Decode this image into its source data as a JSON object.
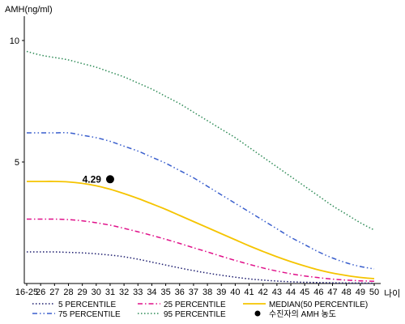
{
  "chart_data": {
    "type": "line",
    "ylabel": "AMH(ng/ml)",
    "xlabel": "나이",
    "ylim": [
      0,
      11
    ],
    "yticks": [
      5,
      10
    ],
    "categories": [
      "16-25",
      "26",
      "27",
      "28",
      "29",
      "30",
      "31",
      "32",
      "33",
      "34",
      "35",
      "36",
      "37",
      "38",
      "39",
      "40",
      "41",
      "42",
      "43",
      "44",
      "45",
      "46",
      "47",
      "48",
      "49",
      "50"
    ],
    "series": [
      {
        "name": "95 PERCENTILE",
        "color": "#2e8b57",
        "dash": "dot",
        "values": [
          9.55,
          9.4,
          9.3,
          9.2,
          9.05,
          8.9,
          8.7,
          8.5,
          8.25,
          8.0,
          7.7,
          7.4,
          7.05,
          6.7,
          6.35,
          6.0,
          5.6,
          5.2,
          4.8,
          4.4,
          4.0,
          3.6,
          3.2,
          2.85,
          2.5,
          2.2
        ]
      },
      {
        "name": "75 PERCENTILE",
        "color": "#3a5fcd",
        "dash": "dashdotdot",
        "values": [
          6.2,
          6.2,
          6.2,
          6.2,
          6.1,
          6.0,
          5.85,
          5.65,
          5.45,
          5.2,
          4.95,
          4.65,
          4.35,
          4.0,
          3.65,
          3.3,
          2.95,
          2.6,
          2.25,
          1.9,
          1.6,
          1.3,
          1.05,
          0.85,
          0.7,
          0.6
        ]
      },
      {
        "name": "MEDIAN(50 PERCENTILE)",
        "color": "#f5c400",
        "dash": "solid",
        "values": [
          4.2,
          4.2,
          4.2,
          4.18,
          4.12,
          4.02,
          3.88,
          3.7,
          3.5,
          3.28,
          3.05,
          2.8,
          2.55,
          2.3,
          2.05,
          1.8,
          1.55,
          1.32,
          1.1,
          0.9,
          0.72,
          0.56,
          0.43,
          0.33,
          0.25,
          0.2
        ]
      },
      {
        "name": "25 PERCENTILE",
        "color": "#e0118a",
        "dash": "dashdot",
        "values": [
          2.65,
          2.65,
          2.65,
          2.63,
          2.58,
          2.5,
          2.4,
          2.27,
          2.13,
          1.98,
          1.82,
          1.65,
          1.47,
          1.3,
          1.12,
          0.95,
          0.79,
          0.64,
          0.51,
          0.4,
          0.31,
          0.24,
          0.18,
          0.14,
          0.11,
          0.09
        ]
      },
      {
        "name": "5 PERCENTILE",
        "color": "#1c1c6e",
        "dash": "dot",
        "values": [
          1.3,
          1.3,
          1.3,
          1.28,
          1.26,
          1.22,
          1.17,
          1.1,
          1.0,
          0.88,
          0.76,
          0.64,
          0.53,
          0.43,
          0.34,
          0.26,
          0.19,
          0.14,
          0.1,
          0.07,
          0.05,
          0.04,
          0.03,
          0.02,
          0.02,
          0.01
        ]
      }
    ],
    "points": [
      {
        "name": "수진자의 AMH 농도",
        "x": "31",
        "y": 4.29,
        "label": "4.29",
        "color": "#000000"
      }
    ],
    "legend": {
      "placement": "bottom",
      "entries": [
        {
          "label": "5 PERCENTILE",
          "color": "#1c1c6e",
          "dash": "dot",
          "kind": "line"
        },
        {
          "label": "25 PERCENTILE",
          "color": "#e0118a",
          "dash": "dashdot",
          "kind": "line"
        },
        {
          "label": "MEDIAN(50 PERCENTILE)",
          "color": "#f5c400",
          "dash": "solid",
          "kind": "line"
        },
        {
          "label": "75 PERCENTILE",
          "color": "#3a5fcd",
          "dash": "dashdotdot",
          "kind": "line"
        },
        {
          "label": "95 PERCENTILE",
          "color": "#2e8b57",
          "dash": "dot",
          "kind": "line"
        },
        {
          "label": "수진자의 AMH 농도",
          "color": "#000000",
          "kind": "marker"
        }
      ]
    }
  }
}
